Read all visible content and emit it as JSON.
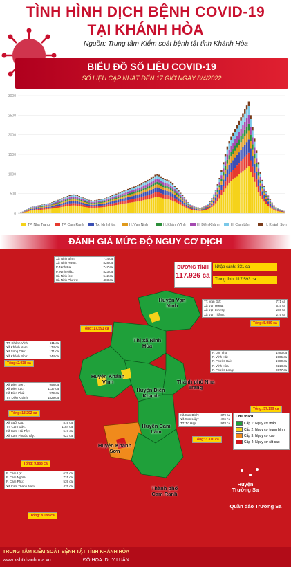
{
  "header": {
    "title_line1": "TÌNH HÌNH DỊCH BỆNH COVID-19",
    "title_line2": "TẠI KHÁNH HÒA",
    "source": "Nguồn: Trung tâm Kiểm soát bệnh tật tỉnh Khánh Hòa"
  },
  "banner": {
    "title": "BIỂU ĐỒ SỐ LIỆU COVID-19",
    "subtitle": "SỐ LIỆU CẬP NHẬT ĐẾN 17 GIỜ NGÀY 8/4/2022"
  },
  "chart_data": {
    "type": "bar",
    "stacked": true,
    "ylim": [
      0,
      3000
    ],
    "yticks": [
      "3000",
      "2500",
      "2000",
      "1500",
      "1000",
      "500",
      "0"
    ],
    "grid": true,
    "legend_position": "bottom",
    "series": [
      {
        "name": "TP. Nha Trang",
        "color": "#f5d21a"
      },
      {
        "name": "TP. Cam Ranh",
        "color": "#e63a2e"
      },
      {
        "name": "Tx. Ninh Hòa",
        "color": "#3a4fb3"
      },
      {
        "name": "H. Vạn Ninh",
        "color": "#e09a1c"
      },
      {
        "name": "H. Khánh Vĩnh",
        "color": "#2c8f3a"
      },
      {
        "name": "H. Diên Khánh",
        "color": "#a44ab0"
      },
      {
        "name": "H. Cam Lâm",
        "color": "#7ac8e8"
      },
      {
        "name": "H. Khánh Sơn",
        "color": "#7a3b1a"
      }
    ],
    "totals": [
      20,
      30,
      45,
      70,
      100,
      130,
      160,
      170,
      180,
      190,
      200,
      210,
      220,
      230,
      240,
      250,
      260,
      280,
      300,
      320,
      340,
      360,
      380,
      400,
      420,
      440,
      460,
      470,
      480,
      470,
      460,
      440,
      420,
      400,
      380,
      360,
      340,
      330,
      320,
      330,
      340,
      350,
      360,
      370,
      380,
      400,
      420,
      440,
      460,
      480,
      500,
      520,
      540,
      560,
      580,
      600,
      620,
      640,
      660,
      680,
      700,
      720,
      740,
      760,
      790,
      820,
      850,
      880,
      910,
      940,
      980,
      1000,
      980,
      940,
      900,
      880,
      860,
      840,
      800,
      760,
      700,
      640,
      580,
      520,
      460,
      400,
      340,
      280,
      240,
      200,
      180,
      160,
      150,
      140,
      150,
      170,
      200,
      240,
      300,
      380,
      480,
      600,
      740,
      900,
      1100,
      1300,
      1500,
      1700,
      1850,
      1950,
      2050,
      2150,
      2250,
      2350,
      2450,
      2550,
      2650,
      2750,
      2850,
      2500,
      2200,
      1900,
      1600,
      1300,
      1050,
      850,
      700,
      560,
      450,
      350,
      270,
      200,
      150,
      120,
      100,
      80,
      60
    ]
  },
  "risk": {
    "title": "ĐÁNH GIÁ MỨC ĐỘ NGUY CƠ DỊCH",
    "total": {
      "label": "DƯƠNG TÍNH",
      "value": "117.926 ca",
      "import_label": "Nhập cảnh: 331 ca",
      "domestic_label": "Trong tỉnh: 117.593 ca"
    },
    "regions": [
      {
        "name": "Huyện Vạn Ninh"
      },
      {
        "name": "Thị xã Ninh Hòa"
      },
      {
        "name": "Huyện Khánh Vĩnh"
      },
      {
        "name": "Huyện Diên Khánh"
      },
      {
        "name": "Thành phố Nha Trang"
      },
      {
        "name": "Huyện Cam Lâm"
      },
      {
        "name": "Huyện Khánh Sơn"
      },
      {
        "name": "Thành phố Cam Ranh"
      },
      {
        "name": "Huyện Trường Sa"
      },
      {
        "name": "Quần đảo Trường Sa"
      }
    ],
    "boxes": [
      {
        "total": "Tổng: 17.591 ca",
        "rows": [
          [
            "Xã Ninh Bình:",
            "714 ca"
          ],
          [
            "Xã Ninh Hưng:",
            "828 ca"
          ],
          [
            "P. Ninh Đa:",
            "747 ca"
          ],
          [
            "P. Ninh Hiệp:",
            "823 ca"
          ],
          [
            "Xã Ninh Ích:",
            "542 ca"
          ],
          [
            "Xã Ninh Phước:",
            "403 ca"
          ]
        ]
      },
      {
        "total": "Tổng: 2.038 ca",
        "rows": [
          [
            "TT. Khánh Vĩnh:",
            "611 ca"
          ],
          [
            "Xã Khánh Nam:",
            "174 ca"
          ],
          [
            "Xã Sông Cầu:",
            "171 ca"
          ],
          [
            "Xã Khánh Bình:",
            "244 ca"
          ]
        ]
      },
      {
        "total": "Tổng: 13.202 ca",
        "rows": [
          [
            "Xã Diên Sơn:",
            "958 ca"
          ],
          [
            "Xã Diên Lạc:",
            "1137 ca"
          ],
          [
            "Xã Diên Phú:",
            "979 ca"
          ],
          [
            "TT. Diên Khánh:",
            "1829 ca"
          ]
        ]
      },
      {
        "total": "Tổng: 9.888 ca",
        "rows": [
          [
            "Xã Suối Cát:",
            "819 ca"
          ],
          [
            "TT. Cam Đức:",
            "1184 ca"
          ],
          [
            "Xã Cam Hải Tây:",
            "547 ca"
          ],
          [
            "Xã Cam Phước Tây:",
            "623 ca"
          ]
        ]
      },
      {
        "total": "Tổng: 8.188 ca",
        "rows": [
          [
            "P. Cam Lợi:",
            "675 ca"
          ],
          [
            "P. Cam Nghĩa:",
            "731 ca"
          ],
          [
            "P. Cam Phú:",
            "539 ca"
          ],
          [
            "Xã Cam Thành Nam:",
            "475 ca"
          ]
        ]
      },
      {
        "total": "Tổng: 5.989 ca",
        "rows": [
          [
            "TT. Vạn Giã:",
            "771 ca"
          ],
          [
            "Xã Vạn Hưng:",
            "515 ca"
          ],
          [
            "Xã Vạn Lương:",
            "258 ca"
          ],
          [
            "Xã Vạn Thắng:",
            "275 ca"
          ]
        ]
      },
      {
        "total": "Tổng: 57.199 ca",
        "rows": [
          [
            "P. Lộc Thọ:",
            "1483 ca"
          ],
          [
            "P. Vĩnh Hải:",
            "1905 ca"
          ],
          [
            "P. Phước Hải:",
            "1780 ca"
          ],
          [
            "P. Vĩnh Hòa:",
            "2218 ca"
          ],
          [
            "P. Phước Long:",
            "2077 ca"
          ]
        ]
      },
      {
        "total": "Tổng: 3.310 ca",
        "rows": [
          [
            "Xã Sơn Bình:",
            "379 ca"
          ],
          [
            "Xã Sơn Hiệp:",
            "465 ca"
          ],
          [
            "TT. Tô Hạp:",
            "978 ca"
          ]
        ]
      }
    ],
    "legend": {
      "title": "Chú thích",
      "items": [
        {
          "label": "Cấp 1: Nguy cơ thấp",
          "color": "#1fa03a"
        },
        {
          "label": "Cấp 2: Nguy cơ trung bình",
          "color": "#f5d21a"
        },
        {
          "label": "Cấp 3: Nguy cơ cao",
          "color": "#f08a1c"
        },
        {
          "label": "Cấp 4: Nguy cơ rất cao",
          "color": "#d0171d"
        }
      ]
    }
  },
  "footer": {
    "org": "TRUNG TÂM KIỂM SOÁT BỆNH TẬT TỈNH KHÁNH HÒA",
    "site": "www.ksbtkhanhhoa.vn",
    "design": "ĐỒ HỌA: DUY LUÂN"
  }
}
